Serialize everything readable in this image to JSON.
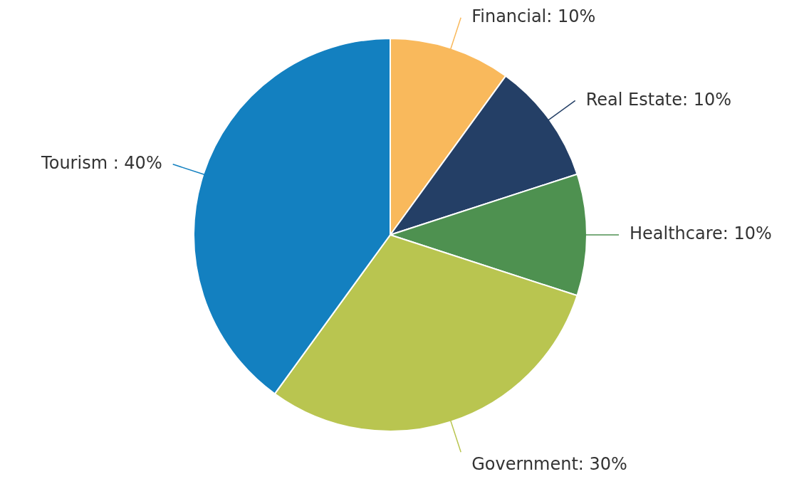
{
  "chart_data": {
    "type": "pie",
    "categories": [
      "Financial",
      "Real Estate",
      "Healthcare",
      "Government",
      "Tourism"
    ],
    "values": [
      10,
      10,
      10,
      30,
      40
    ],
    "colors": [
      "#f9b95c",
      "#243f66",
      "#4e9150",
      "#b9c550",
      "#1380c0"
    ],
    "value_labels": [
      "10%",
      "10%",
      "10%",
      "30%",
      "40%"
    ],
    "legend": false
  }
}
